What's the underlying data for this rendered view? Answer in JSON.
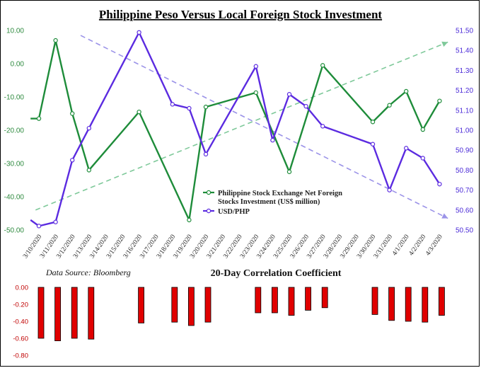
{
  "title": "Philippine Peso Versus Local Foreign Stock Investment",
  "source": "Data Source: Bloomberg",
  "colors": {
    "stock": "#1e8c3a",
    "usdphp": "#5b2be0",
    "trend_up": "#7fc99a",
    "trend_down": "#9b93e8",
    "corr_bar": "#e00000"
  },
  "chart_data": [
    {
      "type": "line",
      "title": "Philippine Peso Versus Local Foreign Stock Investment",
      "x": [
        "3/10/2020",
        "3/11/2020",
        "3/12/2020",
        "3/13/2020",
        "3/14/2020",
        "3/15/2020",
        "3/16/2020",
        "3/17/2020",
        "3/18/2020",
        "3/19/2020",
        "3/20/2020",
        "3/21/2020",
        "3/22/2020",
        "3/23/2020",
        "3/24/2020",
        "3/25/2020",
        "3/26/2020",
        "3/27/2020",
        "3/28/2020",
        "3/29/2020",
        "3/30/2020",
        "3/31/2020",
        "4/1/2020",
        "4/2/2020",
        "4/3/2020"
      ],
      "left_axis": {
        "ylim": [
          -50,
          10
        ],
        "ticks": [
          "10.00",
          "0.00",
          "-10.00",
          "-20.00",
          "-30.00",
          "-40.00",
          "-50.00"
        ]
      },
      "right_axis": {
        "ylim": [
          50.5,
          51.55
        ],
        "ticks": [
          "51.50",
          "51.40",
          "51.30",
          "51.20",
          "51.10",
          "51.00",
          "50.90",
          "50.80",
          "50.70",
          "50.60",
          "50.50"
        ]
      },
      "series": [
        {
          "name": "Philippine Stock Exchange Net Foreign Stocks Investment (US$ million)",
          "axis": "left",
          "points": [
            [
              -0.5,
              -16.5
            ],
            [
              0,
              -16.5
            ],
            [
              1,
              7
            ],
            [
              2,
              -15
            ],
            [
              3,
              -32
            ],
            [
              6,
              -14.5
            ],
            [
              9,
              -47
            ],
            [
              10,
              -13
            ],
            [
              13,
              -8.7
            ],
            [
              15,
              -32.5
            ],
            [
              17,
              -0.5
            ],
            [
              20,
              -17.5
            ],
            [
              21,
              -12.5
            ],
            [
              22,
              -8.3
            ],
            [
              23,
              -19.8
            ],
            [
              24,
              -11.2
            ]
          ]
        },
        {
          "name": "USD/PHP",
          "axis": "right",
          "points": [
            [
              -0.5,
              50.55
            ],
            [
              0,
              50.52
            ],
            [
              1,
              50.54
            ],
            [
              2,
              50.85
            ],
            [
              3,
              51.01
            ],
            [
              6,
              51.49
            ],
            [
              8,
              51.13
            ],
            [
              9,
              51.11
            ],
            [
              10,
              50.88
            ],
            [
              13,
              51.32
            ],
            [
              14,
              50.95
            ],
            [
              15,
              51.18
            ],
            [
              16,
              51.12
            ],
            [
              17,
              51.02
            ],
            [
              20,
              50.93
            ],
            [
              21,
              50.7
            ],
            [
              22,
              50.91
            ],
            [
              23,
              50.86
            ],
            [
              24,
              50.73
            ]
          ]
        }
      ],
      "trendlines": [
        {
          "axis": "left",
          "from": [
            -0.2,
            -44
          ],
          "to": [
            24.5,
            6.5
          ]
        },
        {
          "axis": "left",
          "from": [
            2.5,
            8.5
          ],
          "to": [
            24.5,
            -46.5
          ]
        }
      ],
      "legend": "center-right",
      "grid": false
    },
    {
      "type": "bar",
      "title": "20-Day Correlation Coefficient",
      "categories": [
        "3/10/2020",
        "3/11/2020",
        "3/12/2020",
        "3/13/2020",
        "3/14/2020",
        "3/15/2020",
        "3/16/2020",
        "3/17/2020",
        "3/18/2020",
        "3/19/2020",
        "3/20/2020",
        "3/21/2020",
        "3/22/2020",
        "3/23/2020",
        "3/24/2020",
        "3/25/2020",
        "3/26/2020",
        "3/27/2020",
        "3/28/2020",
        "3/29/2020",
        "3/30/2020",
        "3/31/2020",
        "4/1/2020",
        "4/2/2020",
        "4/3/2020"
      ],
      "values": [
        -0.6,
        -0.63,
        -0.6,
        -0.61,
        null,
        null,
        -0.42,
        null,
        -0.41,
        -0.45,
        -0.41,
        null,
        null,
        -0.3,
        -0.3,
        -0.33,
        -0.27,
        -0.24,
        null,
        null,
        -0.32,
        -0.39,
        -0.4,
        -0.41,
        -0.33
      ],
      "ylim": [
        -0.8,
        0
      ],
      "ticks": [
        "0.00",
        "-0.20",
        "-0.40",
        "-0.60",
        "-0.80"
      ],
      "grid": false
    }
  ]
}
